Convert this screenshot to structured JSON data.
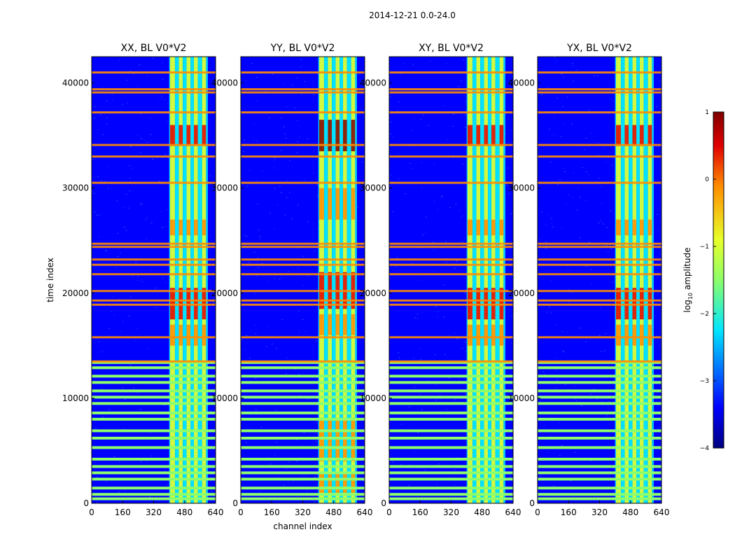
{
  "figure_title": "2014-12-21 0.0-24.0",
  "colors": {
    "background": "#0000ff",
    "blue_mid": "#1a3cff",
    "cyan": "#00e5ff",
    "green": "#8cff6a",
    "yellow": "#e8ff2a",
    "orange": "#ff8c00",
    "red": "#e00000",
    "darkred": "#7f0000"
  },
  "chart_data": [
    {
      "type": "heatmap",
      "title": "XX, BL V0*V2",
      "xlabel": "",
      "ylabel": "time index",
      "xlim": [
        0,
        640
      ],
      "ylim": [
        0,
        42500
      ],
      "xticks": [
        "0",
        "160",
        "320",
        "480",
        "640"
      ],
      "yticks": [
        "0",
        "10000",
        "20000",
        "30000",
        "40000"
      ],
      "intensity": "medium"
    },
    {
      "type": "heatmap",
      "title": "YY, BL V0*V2",
      "xlabel": "channel index",
      "ylabel": "",
      "xlim": [
        0,
        640
      ],
      "ylim": [
        0,
        42500
      ],
      "xticks": [
        "0",
        "160",
        "320",
        "480",
        "640"
      ],
      "yticks": [
        "0",
        "10000",
        "20000",
        "30000",
        "40000"
      ],
      "intensity": "high"
    },
    {
      "type": "heatmap",
      "title": "XY, BL V0*V2",
      "xlabel": "",
      "ylabel": "",
      "xlim": [
        0,
        640
      ],
      "ylim": [
        0,
        42500
      ],
      "xticks": [
        "0",
        "160",
        "320",
        "480",
        "640"
      ],
      "yticks": [
        "0",
        "10000",
        "20000",
        "30000",
        "40000"
      ],
      "intensity": "medium"
    },
    {
      "type": "heatmap",
      "title": "YX, BL V0*V2",
      "xlabel": "",
      "ylabel": "",
      "xlim": [
        0,
        640
      ],
      "ylim": [
        0,
        42500
      ],
      "xticks": [
        "0",
        "160",
        "320",
        "480",
        "640"
      ],
      "yticks": [
        "0",
        "10000",
        "20000",
        "30000",
        "40000"
      ],
      "intensity": "medium"
    }
  ],
  "colorbar": {
    "label": "log",
    "label_sub": "10",
    "label_rest": " amplitude",
    "range": [
      -4,
      1
    ],
    "ticks": [
      "1",
      "0",
      "−1",
      "−2",
      "−3",
      "−4"
    ]
  },
  "flag_rows_time": [
    430,
    850,
    1450,
    2300,
    2900,
    3500,
    4200,
    5300,
    6200,
    6900,
    8000,
    8600,
    9500,
    10100,
    10700,
    11500,
    12100,
    12900,
    13400
  ],
  "flag_rows_red": [
    13500,
    15800,
    18900,
    19300,
    20200,
    21800,
    22700,
    23200,
    24400,
    24700,
    30500,
    33000,
    34100,
    37200,
    39100,
    39400,
    41000
  ]
}
